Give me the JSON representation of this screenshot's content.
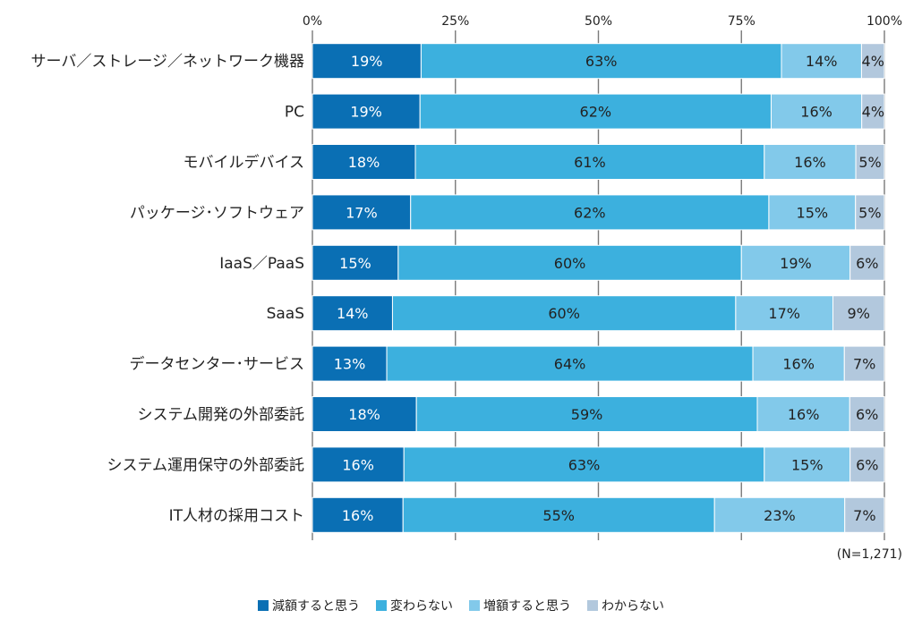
{
  "chart_data": {
    "type": "bar",
    "orientation": "horizontal",
    "stacked": true,
    "percent": true,
    "categories": [
      "サーバ／ストレージ／ネットワーク機器",
      "PC",
      "モバイルデバイス",
      "パッケージ･ソフトウェア",
      "IaaS／PaaS",
      "SaaS",
      "データセンター･サービス",
      "システム開発の外部委託",
      "システム運用保守の外部委託",
      "IT人材の採用コスト"
    ],
    "series": [
      {
        "name": "減額すると思う",
        "color": "#0a6fb4",
        "values": [
          19,
          19,
          18,
          17,
          15,
          14,
          13,
          18,
          16,
          16
        ]
      },
      {
        "name": "変わらない",
        "color": "#3cb0de",
        "values": [
          63,
          62,
          61,
          62,
          60,
          60,
          64,
          59,
          63,
          55
        ]
      },
      {
        "name": "増額すると思う",
        "color": "#82c9ea",
        "values": [
          14,
          16,
          16,
          15,
          19,
          17,
          16,
          16,
          15,
          23
        ]
      },
      {
        "name": "わからない",
        "color": "#b2c8dd",
        "values": [
          4,
          4,
          5,
          5,
          6,
          9,
          7,
          6,
          6,
          7
        ]
      }
    ],
    "xticks": [
      "0%",
      "25%",
      "50%",
      "75%",
      "100%"
    ],
    "xlim": [
      0,
      100
    ],
    "grid": "vertical",
    "legend_position": "bottom",
    "note": "(N=1,271)"
  }
}
